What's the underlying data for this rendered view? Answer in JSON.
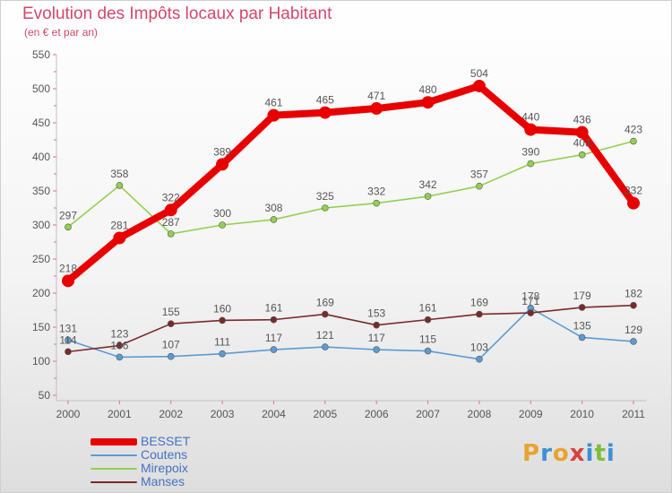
{
  "header": {
    "title": "Evolution des Impôts locaux par Habitant",
    "subtitle": "(en € et par an)"
  },
  "logo": {
    "text": "Proxiti",
    "colors": [
      "#e8a32e",
      "#3d8fd6",
      "#e8a32e",
      "#d94040",
      "#3d8fd6",
      "#7dbf3a",
      "#3d8fd6"
    ]
  },
  "chart_data": {
    "type": "line",
    "title": "Evolution des Impôts locaux par Habitant",
    "subtitle": "(en € et par an)",
    "xlabel": "",
    "ylabel": "",
    "categories": [
      "2000",
      "2001",
      "2002",
      "2003",
      "2004",
      "2005",
      "2006",
      "2007",
      "2008",
      "2009",
      "2010",
      "2011"
    ],
    "ylim": [
      50,
      550
    ],
    "yticks": [
      50,
      100,
      150,
      200,
      250,
      300,
      350,
      400,
      450,
      500,
      550
    ],
    "grid": false,
    "legend_position": "bottom-left",
    "series": [
      {
        "name": "BESSET",
        "color": "#e80000",
        "emphasis": true,
        "values": [
          218,
          281,
          322,
          389,
          461,
          465,
          471,
          480,
          504,
          440,
          436,
          332
        ]
      },
      {
        "name": "Coutens",
        "color": "#5b9bd5",
        "emphasis": false,
        "values": [
          131,
          106,
          107,
          111,
          117,
          121,
          117,
          115,
          103,
          178,
          135,
          129
        ]
      },
      {
        "name": "Mirepoix",
        "color": "#92d050",
        "emphasis": false,
        "values": [
          297,
          358,
          287,
          300,
          308,
          325,
          332,
          342,
          357,
          390,
          403,
          423
        ]
      },
      {
        "name": "Manses",
        "color": "#7b2a2a",
        "emphasis": false,
        "values": [
          114,
          123,
          155,
          160,
          161,
          169,
          153,
          161,
          169,
          171,
          179,
          182
        ]
      }
    ]
  }
}
